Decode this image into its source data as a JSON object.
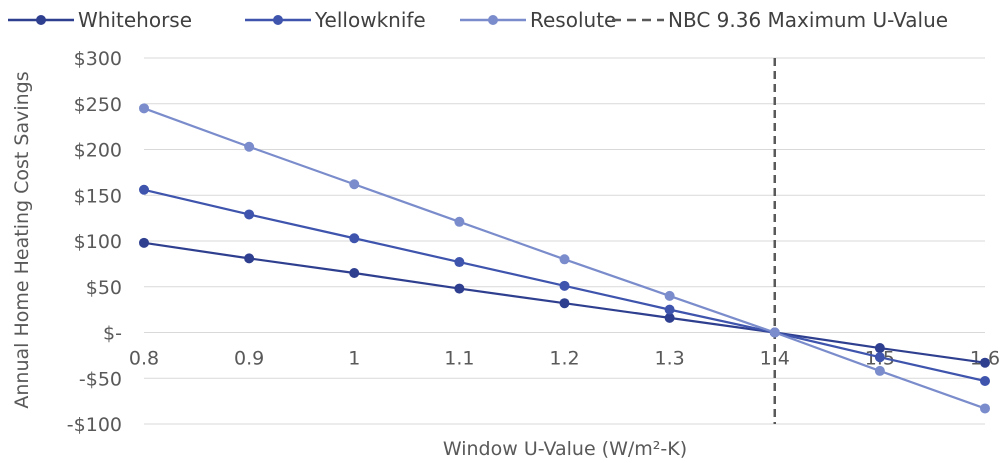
{
  "chart_data": {
    "type": "line",
    "title": "",
    "xlabel": "Window U-Value (W/m²-K)",
    "ylabel": "Annual Home Heating Cost Savings",
    "x": [
      0.8,
      0.9,
      1,
      1.1,
      1.2,
      1.3,
      1.4,
      1.5,
      1.6
    ],
    "x_tick_labels": [
      "0.8",
      "0.9",
      "1",
      "1.1",
      "1.2",
      "1.3",
      "1.4",
      "1.5",
      "1.6"
    ],
    "xlim": [
      0.8,
      1.6
    ],
    "ylim": [
      -100,
      300
    ],
    "y_ticks": [
      300,
      250,
      200,
      150,
      100,
      50,
      0,
      -50,
      -100
    ],
    "y_tick_labels": [
      "$300",
      "$250",
      "$200",
      "$150",
      "$100",
      "$50",
      "$-",
      "-$50",
      "-$100"
    ],
    "grid": true,
    "legend_position": "top",
    "series": [
      {
        "name": "Whitehorse",
        "color": "#2f3f8f",
        "values": [
          98,
          81,
          65,
          48,
          32,
          16,
          0,
          -17,
          -33
        ]
      },
      {
        "name": "Yellowknife",
        "color": "#3e54ad",
        "values": [
          156,
          129,
          103,
          77,
          51,
          25,
          0,
          -27,
          -53
        ]
      },
      {
        "name": "Resolute",
        "color": "#7a8ccb",
        "values": [
          245,
          203,
          162,
          121,
          80,
          40,
          0,
          -42,
          -83
        ]
      }
    ],
    "reference_lines": [
      {
        "name": "NBC 9.36 Maximum U-Value",
        "x": 1.4,
        "color": "#595959",
        "style": "dashed"
      }
    ]
  }
}
